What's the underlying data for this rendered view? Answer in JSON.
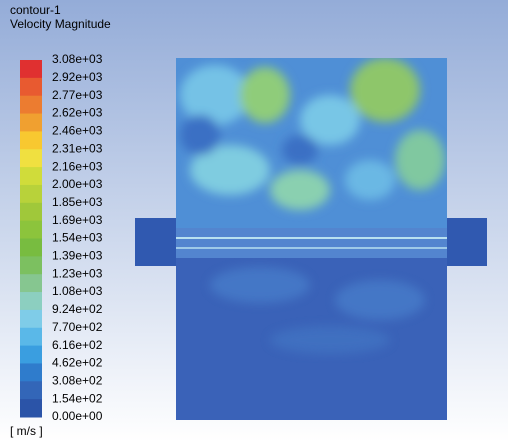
{
  "header": {
    "title": "contour-1",
    "subtitle": "Velocity Magnitude"
  },
  "legend": {
    "labels": [
      "3.08e+03",
      "2.92e+03",
      "2.77e+03",
      "2.62e+03",
      "2.46e+03",
      "2.31e+03",
      "2.16e+03",
      "2.00e+03",
      "1.85e+03",
      "1.69e+03",
      "1.54e+03",
      "1.39e+03",
      "1.23e+03",
      "1.08e+03",
      "9.24e+02",
      "7.70e+02",
      "6.16e+02",
      "4.62e+02",
      "3.08e+02",
      "1.54e+02",
      "0.00e+00"
    ],
    "colors": [
      "#e03030",
      "#e85a30",
      "#ec7c30",
      "#f0a030",
      "#f8c830",
      "#f0e040",
      "#d0dc3a",
      "#b8d23a",
      "#a0c83a",
      "#8cc43c",
      "#78bc40",
      "#7cc060",
      "#86c690",
      "#8ccfc0",
      "#7fcce8",
      "#5ab8e8",
      "#3a9ee0",
      "#2f7ccc",
      "#3366b8",
      "#2b54a8"
    ],
    "unit": "[ m/s ]"
  }
}
